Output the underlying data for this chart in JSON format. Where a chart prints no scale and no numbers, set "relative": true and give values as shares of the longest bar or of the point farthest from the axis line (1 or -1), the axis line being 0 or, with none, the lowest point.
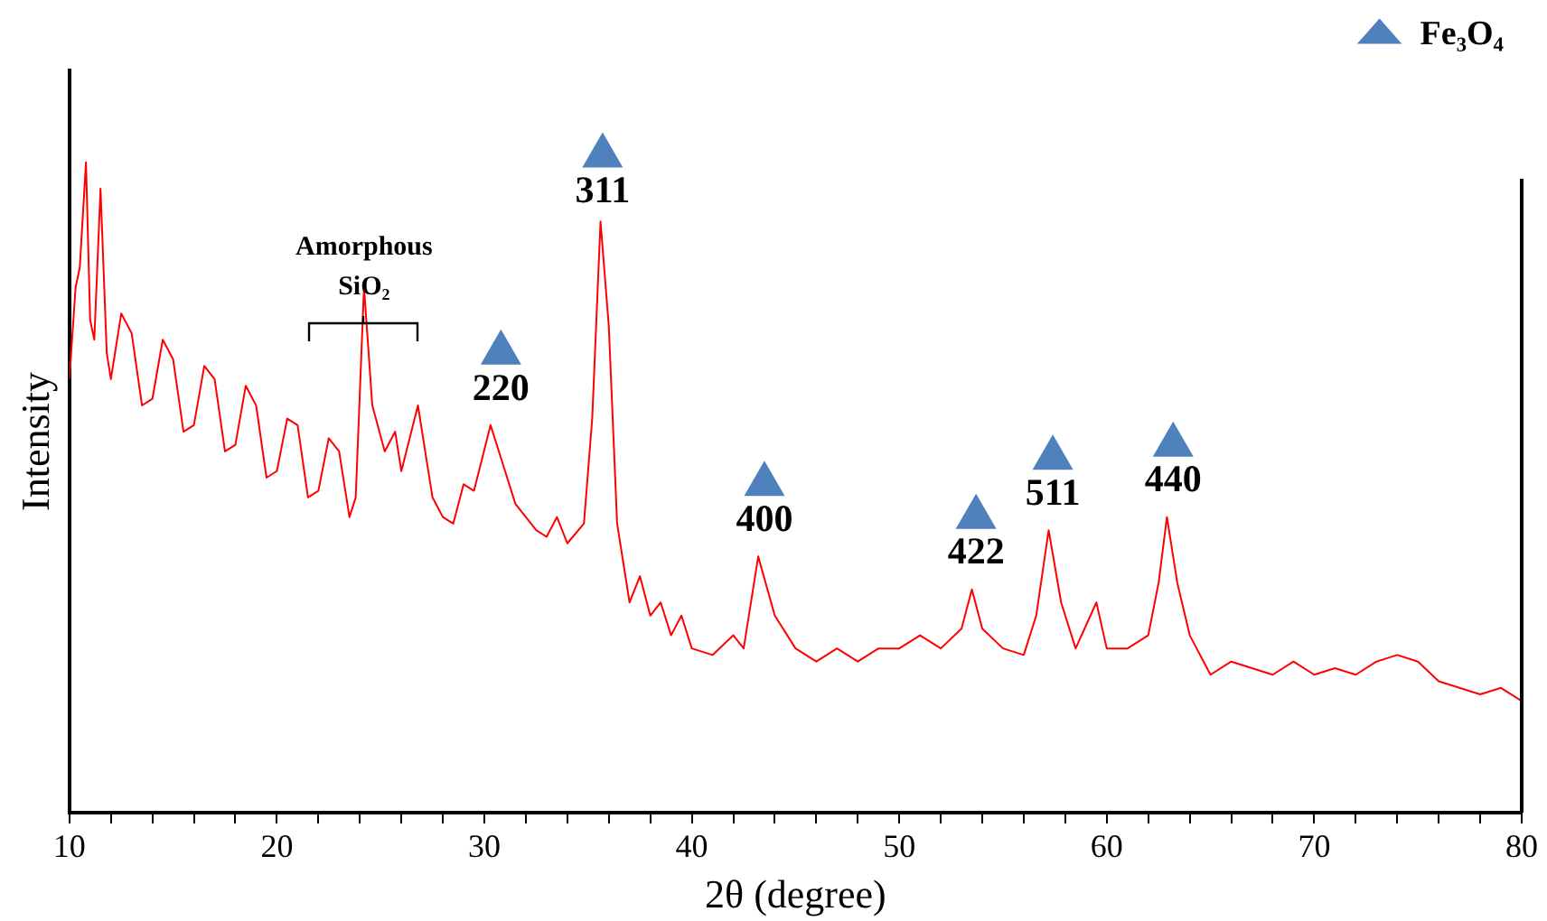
{
  "chart_data": {
    "type": "line",
    "relative": true,
    "xlabel": "2θ (degree)",
    "ylabel": "Intensity",
    "xlim": [
      10,
      80
    ],
    "xticks": [
      10,
      {
        "value": 12,
        "label": null
      },
      {
        "value": 14,
        "label": null
      },
      {
        "value": 16,
        "label": null
      },
      {
        "value": 18,
        "label": null
      },
      20,
      {
        "value": 22,
        "label": null
      },
      {
        "value": 24,
        "label": null
      },
      {
        "value": 26,
        "label": null
      },
      {
        "value": 28,
        "label": null
      },
      30,
      {
        "value": 32,
        "label": null
      },
      {
        "value": 34,
        "label": null
      },
      {
        "value": 36,
        "label": null
      },
      {
        "value": 38,
        "label": null
      },
      40,
      {
        "value": 42,
        "label": null
      },
      {
        "value": 44,
        "label": null
      },
      {
        "value": 46,
        "label": null
      },
      {
        "value": 48,
        "label": null
      },
      50,
      {
        "value": 52,
        "label": null
      },
      {
        "value": 54,
        "label": null
      },
      {
        "value": 56,
        "label": null
      },
      {
        "value": 58,
        "label": null
      },
      60,
      {
        "value": 62,
        "label": null
      },
      {
        "value": 64,
        "label": null
      },
      {
        "value": 66,
        "label": null
      },
      {
        "value": 68,
        "label": null
      },
      70,
      {
        "value": 72,
        "label": null
      },
      {
        "value": 74,
        "label": null
      },
      {
        "value": 76,
        "label": null
      },
      {
        "value": 78,
        "label": null
      },
      80
    ],
    "tick_labels": "x",
    "grid": false,
    "legend": "top right",
    "series": [
      {
        "type": "line",
        "color": "#ff0000",
        "marker": "none",
        "line_style": "solid",
        "x": [
          10,
          10.3,
          10.5,
          10.8,
          11.0,
          11.2,
          11.5,
          11.8,
          12,
          12.5,
          13,
          13.5,
          14,
          14.5,
          15,
          15.5,
          16,
          16.5,
          17,
          17.5,
          18,
          18.5,
          19,
          19.5,
          20,
          20.5,
          21,
          21.5,
          22,
          22.5,
          23,
          23.5,
          23.8,
          24.2,
          24.6,
          25.2,
          25.7,
          26,
          26.8,
          27.5,
          28,
          28.5,
          29,
          29.5,
          30.3,
          31,
          31.5,
          32,
          32.5,
          33,
          33.5,
          34,
          34.8,
          35.2,
          35.6,
          36.0,
          36.4,
          37,
          37.5,
          38,
          38.5,
          39,
          39.5,
          40,
          41,
          42,
          42.5,
          43.2,
          44,
          45,
          46,
          47,
          48,
          49,
          50,
          51,
          52,
          53,
          53.5,
          54,
          55,
          56,
          56.6,
          57.2,
          57.8,
          58.5,
          59.5,
          60,
          61,
          62,
          62.5,
          62.9,
          63.4,
          64,
          65,
          66,
          67,
          68,
          69,
          70,
          71,
          72,
          73,
          74,
          75,
          76,
          77,
          78,
          79,
          80
        ],
        "values": [
          0.66,
          0.8,
          0.83,
          0.99,
          0.75,
          0.72,
          0.95,
          0.7,
          0.66,
          0.76,
          0.73,
          0.62,
          0.63,
          0.72,
          0.69,
          0.58,
          0.59,
          0.68,
          0.66,
          0.55,
          0.56,
          0.65,
          0.62,
          0.51,
          0.52,
          0.6,
          0.59,
          0.48,
          0.49,
          0.57,
          0.55,
          0.45,
          0.48,
          0.8,
          0.62,
          0.55,
          0.58,
          0.52,
          0.62,
          0.48,
          0.45,
          0.44,
          0.5,
          0.49,
          0.59,
          0.52,
          0.47,
          0.45,
          0.43,
          0.42,
          0.45,
          0.41,
          0.44,
          0.6,
          0.9,
          0.74,
          0.44,
          0.32,
          0.36,
          0.3,
          0.32,
          0.27,
          0.3,
          0.25,
          0.24,
          0.27,
          0.25,
          0.39,
          0.3,
          0.25,
          0.23,
          0.25,
          0.23,
          0.25,
          0.25,
          0.27,
          0.25,
          0.28,
          0.34,
          0.28,
          0.25,
          0.24,
          0.3,
          0.43,
          0.32,
          0.25,
          0.32,
          0.25,
          0.25,
          0.27,
          0.35,
          0.45,
          0.35,
          0.27,
          0.21,
          0.23,
          0.22,
          0.21,
          0.23,
          0.21,
          0.22,
          0.21,
          0.23,
          0.24,
          0.23,
          0.2,
          0.19,
          0.18,
          0.19,
          0.17
        ]
      },
      {
        "type": "scatter",
        "name": "Fe₃O₄",
        "color": "#4f81bd",
        "marker": "triangle",
        "x": [
          30.8,
          35.7,
          43.5,
          53.7,
          57.4,
          63.2
        ],
        "values": [
          0.7,
          1,
          0.5,
          0.45,
          0.54,
          0.56
        ]
      }
    ],
    "annotations": [
      {
        "text": "220",
        "x": 30.8,
        "y": 0.7
      },
      {
        "text": "311",
        "x": 35.7,
        "y": 1
      },
      {
        "text": "400",
        "x": 43.5,
        "y": 0.5
      },
      {
        "text": "422",
        "x": 53.7,
        "y": 0.45
      },
      {
        "text": "511",
        "x": 57.4,
        "y": 0.54
      },
      {
        "text": "440",
        "x": 63.2,
        "y": 0.56
      },
      {
        "text": "Amorphous SiO₂",
        "x": 24.2,
        "y": 0.74
      }
    ]
  }
}
